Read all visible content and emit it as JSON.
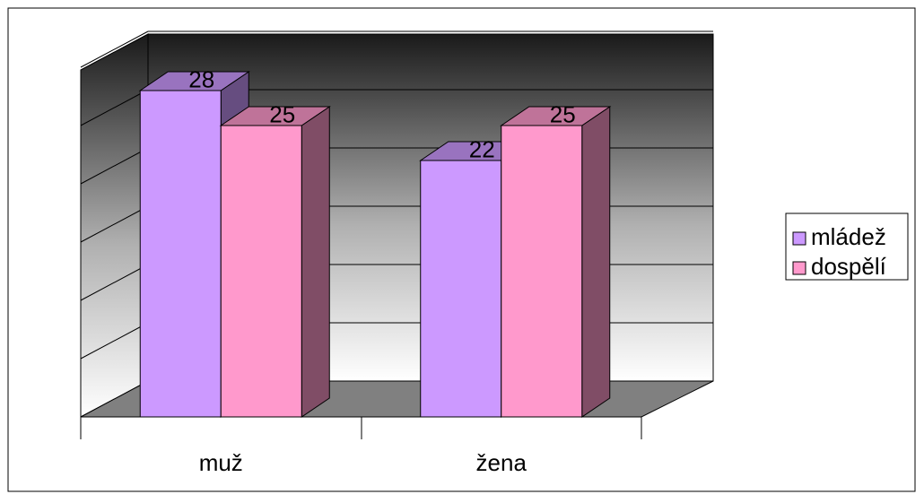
{
  "chart_data": {
    "type": "bar3d",
    "categories": [
      "muž",
      "žena"
    ],
    "series": [
      {
        "name": "mládež",
        "color": "#cc99ff",
        "values": [
          28,
          22
        ]
      },
      {
        "name": "dospělí",
        "color": "#ff99cc",
        "values": [
          25,
          25
        ]
      }
    ],
    "ylim": [
      0,
      30
    ],
    "yticks": [
      0,
      5,
      10,
      15,
      20,
      25,
      30
    ],
    "grid": true,
    "legend": "right"
  }
}
